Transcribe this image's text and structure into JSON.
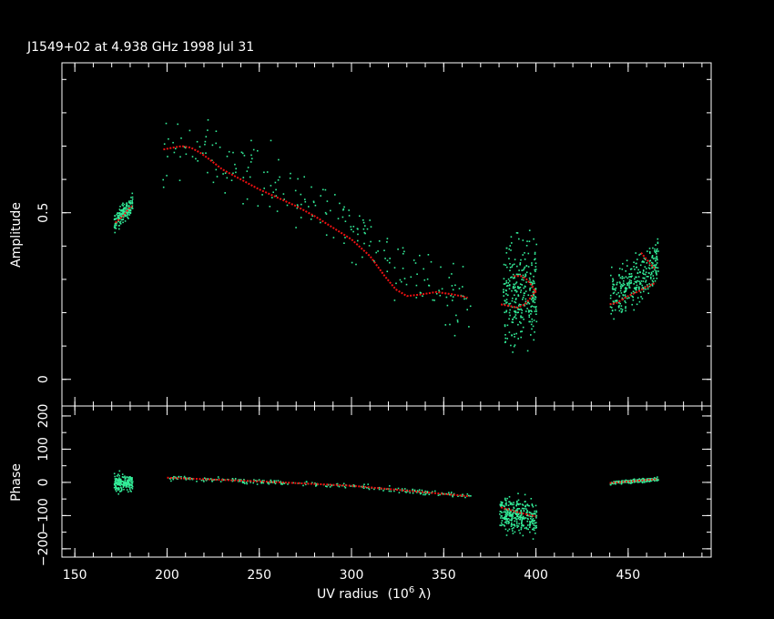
{
  "chart_data": {
    "type": "scatter",
    "title": "J1549+02 at 4.938 GHz 1998 Jul 31",
    "xlabel": "UV radius",
    "xlabel_unit": "(10",
    "xlabel_exp": "6",
    "xlabel_unit_end": " λ)",
    "xlim": [
      143,
      495
    ],
    "x_ticks": [
      150,
      200,
      250,
      300,
      350,
      400,
      450
    ],
    "colors": {
      "data": "#33ee99",
      "model": "#ee1111",
      "axes": "#ffffff",
      "background": "#000000"
    },
    "panels": [
      {
        "id": "amplitude",
        "ylabel": "Amplitude",
        "ylim": [
          -0.08,
          0.95
        ],
        "y_ticks": [
          0,
          0.5
        ],
        "y_tick_labels": [
          "0",
          "0.5"
        ],
        "clusters": [
          {
            "x": [
              171,
              181
            ],
            "center": [
              0.47,
              0.53
            ],
            "spread": 0.02,
            "n": 160
          },
          {
            "x": [
              197,
              365
            ],
            "center_points": [
              [
                197,
                0.68
              ],
              [
                210,
                0.72
              ],
              [
                230,
                0.65
              ],
              [
                260,
                0.58
              ],
              [
                290,
                0.5
              ],
              [
                310,
                0.42
              ],
              [
                330,
                0.33
              ],
              [
                350,
                0.28
              ],
              [
                365,
                0.22
              ]
            ],
            "spread": 0.07,
            "n": 230
          },
          {
            "x": [
              382,
              400
            ],
            "center": [
              0.23,
              0.28
            ],
            "spread": 0.11,
            "n": 300
          },
          {
            "x": [
              440,
              466
            ],
            "center_points": [
              [
                440,
                0.25
              ],
              [
                455,
                0.3
              ],
              [
                466,
                0.36
              ]
            ],
            "spread": 0.05,
            "n": 300
          }
        ],
        "model_segments": [
          [
            [
              172,
              0.47
            ],
            [
              176,
              0.49
            ],
            [
              179,
              0.51
            ],
            [
              181,
              0.52
            ]
          ],
          [
            [
              198,
              0.69
            ],
            [
              203,
              0.695
            ],
            [
              208,
              0.7
            ],
            [
              213,
              0.695
            ],
            [
              218,
              0.68
            ],
            [
              223,
              0.66
            ],
            [
              230,
              0.63
            ],
            [
              240,
              0.6
            ],
            [
              250,
              0.57
            ],
            [
              260,
              0.545
            ],
            [
              270,
              0.52
            ],
            [
              280,
              0.49
            ],
            [
              290,
              0.455
            ],
            [
              300,
              0.42
            ],
            [
              310,
              0.37
            ],
            [
              318,
              0.31
            ],
            [
              324,
              0.27
            ],
            [
              330,
              0.25
            ],
            [
              338,
              0.255
            ],
            [
              346,
              0.262
            ],
            [
              355,
              0.255
            ],
            [
              363,
              0.245
            ]
          ],
          [
            [
              381,
              0.225
            ],
            [
              386,
              0.22
            ],
            [
              390,
              0.215
            ],
            [
              394,
              0.225
            ],
            [
              398,
              0.25
            ],
            [
              400,
              0.27
            ]
          ],
          [
            [
              388,
              0.31
            ],
            [
              392,
              0.31
            ],
            [
              395,
              0.3
            ],
            [
              398,
              0.28
            ],
            [
              400,
              0.26
            ]
          ],
          [
            [
              440,
              0.225
            ],
            [
              444,
              0.23
            ],
            [
              450,
              0.25
            ],
            [
              456,
              0.265
            ],
            [
              461,
              0.28
            ],
            [
              465,
              0.29
            ]
          ],
          [
            [
              457,
              0.38
            ],
            [
              460,
              0.36
            ],
            [
              463,
              0.34
            ],
            [
              465,
              0.33
            ]
          ]
        ]
      },
      {
        "id": "phase",
        "ylabel": "Phase",
        "ylim": [
          -225,
          230
        ],
        "y_ticks": [
          -200,
          -100,
          0,
          100,
          200
        ],
        "y_tick_labels": [
          "−200",
          "−100",
          "0",
          "100",
          "200"
        ],
        "clusters": [
          {
            "x": [
              171,
              181
            ],
            "center": [
              0,
              0
            ],
            "spread": 18,
            "n": 180
          },
          {
            "x": [
              200,
              365
            ],
            "center_points": [
              [
                200,
                15
              ],
              [
                250,
                5
              ],
              [
                300,
                -8
              ],
              [
                365,
                -40
              ]
            ],
            "spread": 5,
            "n": 260
          },
          {
            "x": [
              380,
              400
            ],
            "center": [
              -90,
              -110
            ],
            "spread": 35,
            "n": 320
          },
          {
            "x": [
              440,
              466
            ],
            "center_points": [
              [
                440,
                0
              ],
              [
                466,
                12
              ]
            ],
            "spread": 4,
            "n": 220
          }
        ],
        "model_segments": [
          [
            [
              200,
              14
            ],
            [
              250,
              3
            ],
            [
              300,
              -10
            ],
            [
              364,
              -42
            ]
          ],
          [
            [
              381,
              -75
            ],
            [
              390,
              -90
            ],
            [
              398,
              -100
            ],
            [
              400,
              -102
            ]
          ],
          [
            [
              440,
              -2
            ],
            [
              466,
              10
            ]
          ]
        ]
      }
    ]
  }
}
